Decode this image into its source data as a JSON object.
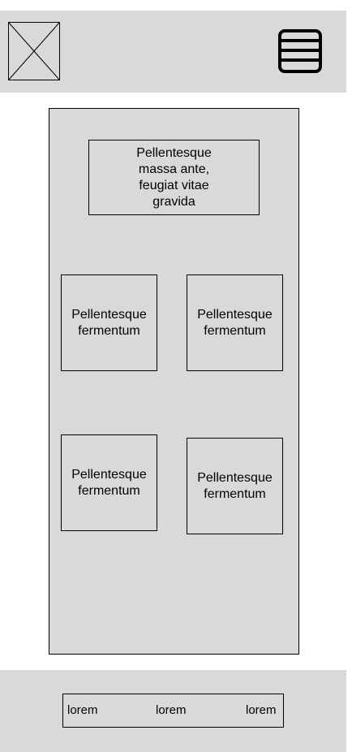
{
  "header": {
    "logo_icon": "image-placeholder-icon",
    "menu_icon": "hamburger-menu-icon"
  },
  "main": {
    "headline": "Pellentesque massa ante, feugiat vitae gravida",
    "cards": [
      {
        "label": "Pellentesque fermentum"
      },
      {
        "label": "Pellentesque fermentum"
      },
      {
        "label": "Pellentesque fermentum"
      },
      {
        "label": "Pellentesque fermentum"
      }
    ]
  },
  "footer": {
    "links": [
      {
        "label": "lorem"
      },
      {
        "label": "lorem"
      },
      {
        "label": "lorem"
      }
    ]
  },
  "colors": {
    "panel_gray": "#d9d9d9",
    "border": "#000000",
    "background": "#ffffff"
  }
}
